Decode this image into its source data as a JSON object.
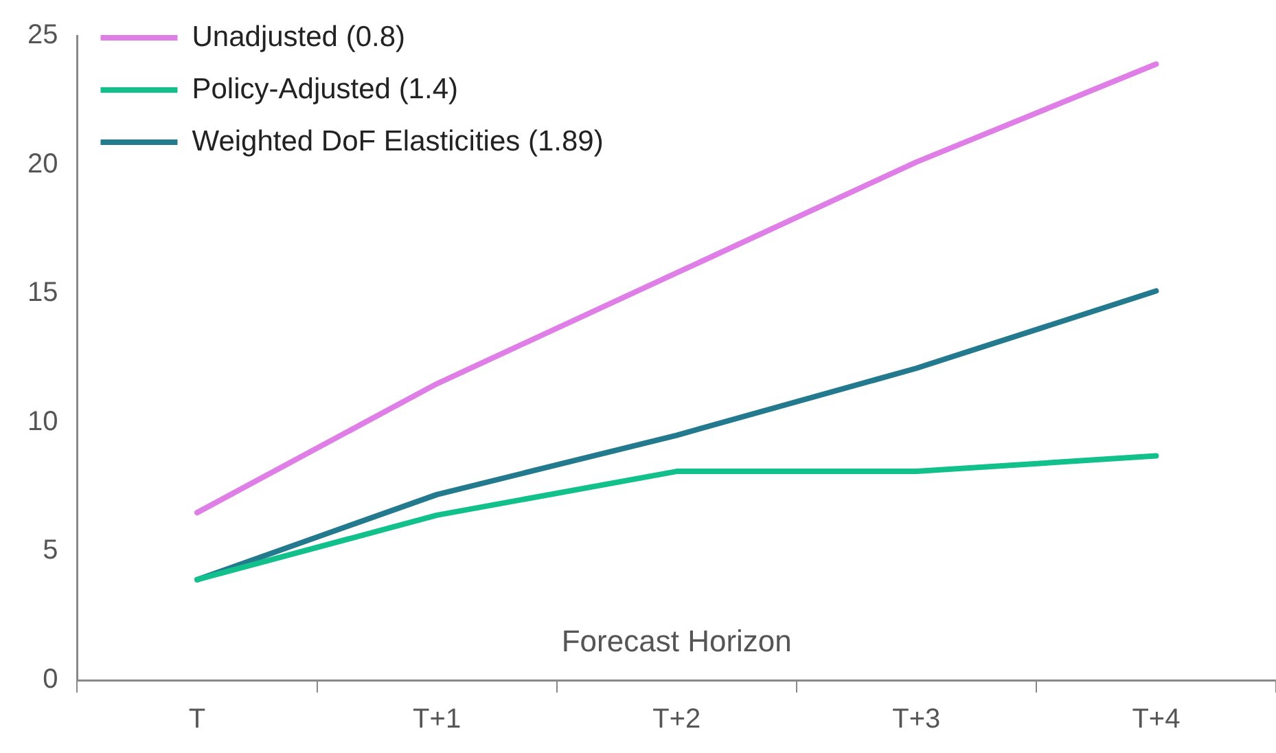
{
  "chart_data": {
    "type": "line",
    "xlabel": "Forecast Horizon",
    "categories": [
      "T",
      "T+1",
      "T+2",
      "T+3",
      "T+4"
    ],
    "series": [
      {
        "name": "Unadjusted (0.8)",
        "color": "#e07ee8",
        "values": [
          6.5,
          11.5,
          15.8,
          20.1,
          23.9
        ]
      },
      {
        "name": "Policy-Adjusted (1.4)",
        "color": "#12c08c",
        "values": [
          3.9,
          6.4,
          8.1,
          8.1,
          8.7
        ]
      },
      {
        "name": "Weighted DoF Elasticities (1.89)",
        "color": "#237a8e",
        "values": [
          3.9,
          7.2,
          9.5,
          12.1,
          15.1
        ]
      }
    ],
    "ylim": [
      0,
      25
    ],
    "yticks": [
      0,
      5,
      10,
      15,
      20,
      25
    ],
    "grid": false,
    "legend": "top left",
    "marker": "none",
    "line_style": "solid"
  }
}
